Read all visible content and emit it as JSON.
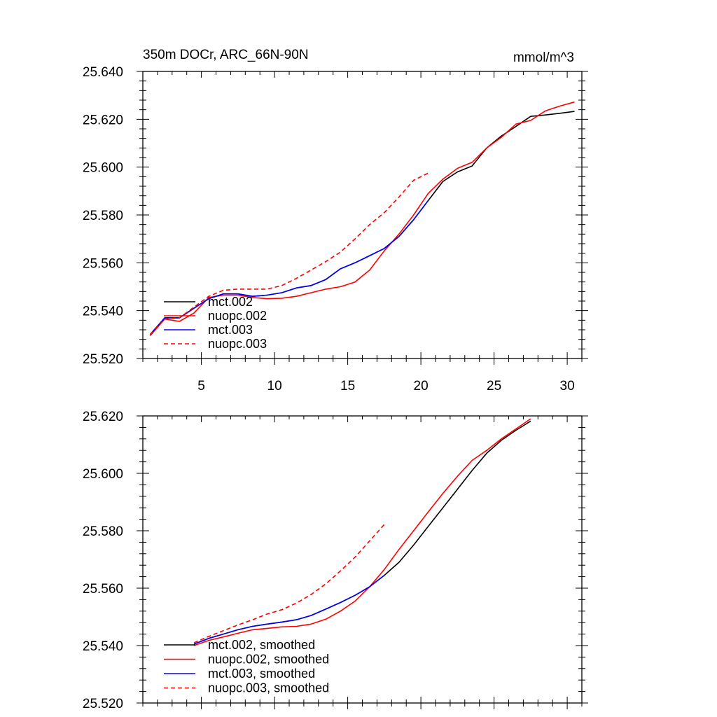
{
  "chart_data": [
    {
      "type": "line",
      "title": "350m DOCr, ARC_66N-90N",
      "units": "mmol/m^3",
      "xlim": [
        1,
        31
      ],
      "ylim": [
        25.52,
        25.64
      ],
      "xticks": [
        5,
        10,
        15,
        20,
        25,
        30
      ],
      "xtick_labels": [
        "5",
        "10",
        "15",
        "20",
        "25",
        "30"
      ],
      "yticks": [
        25.52,
        25.54,
        25.56,
        25.58,
        25.6,
        25.62,
        25.64
      ],
      "ytick_labels": [
        "25.520",
        "25.540",
        "25.560",
        "25.580",
        "25.600",
        "25.620",
        "25.640"
      ],
      "legend_position": "bottom-left",
      "series": [
        {
          "name": "mct.002",
          "color": "#000000",
          "dash": "solid",
          "x": [
            1.5,
            2.5,
            3.5,
            4.5,
            5.5,
            6.5,
            7.5,
            8.5,
            9.5,
            10.5,
            11.5,
            12.5,
            13.5,
            14.5,
            15.5,
            16.5,
            17.5,
            18.5,
            19.5,
            20.5,
            21.5,
            22.5,
            23.5,
            24.5,
            25.5,
            26.5,
            27.5,
            28.5,
            29.5,
            30.5
          ],
          "y": [
            25.53,
            25.537,
            25.537,
            25.541,
            25.545,
            25.547,
            25.547,
            25.546,
            25.5465,
            25.5475,
            25.5495,
            25.5505,
            25.553,
            25.5575,
            25.56,
            25.563,
            25.566,
            25.571,
            25.578,
            25.586,
            25.594,
            25.598,
            25.6005,
            25.608,
            25.613,
            25.617,
            25.6212,
            25.6218,
            25.6225,
            25.6233
          ]
        },
        {
          "name": "nuopc.002",
          "color": "#ff0000",
          "dash": "solid",
          "x": [
            1.5,
            2.5,
            3.5,
            4.5,
            5.5,
            6.5,
            7.5,
            8.5,
            9.5,
            10.5,
            11.5,
            12.5,
            13.5,
            14.5,
            15.5,
            16.5,
            17.5,
            18.5,
            19.5,
            20.5,
            21.5,
            22.5,
            23.5,
            24.5,
            25.5,
            26.5,
            27.5,
            28.5,
            29.5,
            30.5
          ],
          "y": [
            25.5295,
            25.5365,
            25.5355,
            25.539,
            25.5455,
            25.5465,
            25.5465,
            25.5455,
            25.545,
            25.5452,
            25.546,
            25.5475,
            25.549,
            25.55,
            25.552,
            25.557,
            25.565,
            25.572,
            25.58,
            25.589,
            25.595,
            25.5995,
            25.602,
            25.608,
            25.6125,
            25.618,
            25.6195,
            25.6235,
            25.6255,
            25.6272
          ]
        },
        {
          "name": "mct.003",
          "color": "#0000ff",
          "dash": "solid",
          "x": [
            1.5,
            2.5,
            3.5,
            4.5,
            5.5,
            6.5,
            7.5,
            8.5,
            9.5,
            10.5,
            11.5,
            12.5,
            13.5,
            14.5,
            15.5,
            16.5,
            17.5,
            18.5,
            19.5,
            20.5
          ],
          "y": [
            25.53,
            25.537,
            25.537,
            25.541,
            25.545,
            25.547,
            25.547,
            25.546,
            25.5465,
            25.5475,
            25.5495,
            25.5505,
            25.553,
            25.5575,
            25.56,
            25.563,
            25.566,
            25.571,
            25.578,
            25.586
          ]
        },
        {
          "name": "nuopc.003",
          "color": "#ff0000",
          "dash": "dashed",
          "x": [
            1.5,
            2.5,
            3.5,
            4.5,
            5.5,
            6.5,
            7.5,
            8.5,
            9.5,
            10.5,
            11.5,
            12.5,
            13.5,
            14.5,
            15.5,
            16.5,
            17.5,
            18.5,
            19.5,
            20.5
          ],
          "y": [
            25.53,
            25.5365,
            25.537,
            25.5415,
            25.546,
            25.5485,
            25.549,
            25.549,
            25.549,
            25.5505,
            25.5535,
            25.557,
            25.5605,
            25.5645,
            25.57,
            25.576,
            25.581,
            25.5875,
            25.5945,
            25.5975
          ]
        }
      ]
    },
    {
      "type": "line",
      "xlim": [
        1,
        31
      ],
      "ylim": [
        25.52,
        25.62
      ],
      "xticks": [
        5,
        10,
        15,
        20,
        25,
        30
      ],
      "yticks": [
        25.52,
        25.54,
        25.56,
        25.58,
        25.6,
        25.62
      ],
      "ytick_labels": [
        "25.520",
        "25.540",
        "25.560",
        "25.580",
        "25.600",
        "25.620"
      ],
      "legend_position": "bottom-left",
      "series": [
        {
          "name": "mct.002, smoothed",
          "color": "#000000",
          "dash": "solid",
          "x": [
            4.5,
            5.5,
            6.5,
            7.5,
            8.5,
            9.5,
            10.5,
            11.5,
            12.5,
            13.5,
            14.5,
            15.5,
            16.5,
            17.5,
            18.5,
            19.5,
            20.5,
            21.5,
            22.5,
            23.5,
            24.5,
            25.5,
            26.5,
            27.5
          ],
          "y": [
            25.5405,
            25.5425,
            25.544,
            25.5455,
            25.5467,
            25.5475,
            25.5482,
            25.549,
            25.5505,
            25.5527,
            25.555,
            25.5575,
            25.5605,
            25.5645,
            25.569,
            25.575,
            25.5815,
            25.588,
            25.5945,
            25.601,
            25.607,
            25.6115,
            25.615,
            25.6182
          ]
        },
        {
          "name": "nuopc.002, smoothed",
          "color": "#ff0000",
          "dash": "solid",
          "x": [
            4.5,
            5.5,
            6.5,
            7.5,
            8.5,
            9.5,
            10.5,
            11.5,
            12.5,
            13.5,
            14.5,
            15.5,
            16.5,
            17.5,
            18.5,
            19.5,
            20.5,
            21.5,
            22.5,
            23.5,
            24.5,
            25.5,
            26.5,
            27.5
          ],
          "y": [
            25.54,
            25.5418,
            25.543,
            25.5443,
            25.5455,
            25.546,
            25.5465,
            25.5467,
            25.5475,
            25.5492,
            25.552,
            25.5555,
            25.5605,
            25.5665,
            25.5735,
            25.58,
            25.5865,
            25.593,
            25.599,
            25.6045,
            25.608,
            25.612,
            25.6155,
            25.619
          ]
        },
        {
          "name": "mct.003, smoothed",
          "color": "#0000ff",
          "dash": "solid",
          "x": [
            4.5,
            5.5,
            6.5,
            7.5,
            8.5,
            9.5,
            10.5,
            11.5,
            12.5,
            13.5,
            14.5,
            15.5,
            16.5,
            17.5
          ],
          "y": [
            25.5405,
            25.5425,
            25.544,
            25.5455,
            25.5467,
            25.5475,
            25.5482,
            25.549,
            25.5505,
            25.5527,
            25.555,
            25.5575,
            25.5605,
            25.5645
          ]
        },
        {
          "name": "nuopc.003, smoothed",
          "color": "#ff0000",
          "dash": "dashed",
          "x": [
            4.5,
            5.5,
            6.5,
            7.5,
            8.5,
            9.5,
            10.5,
            11.5,
            12.5,
            13.5,
            14.5,
            15.5,
            16.5,
            17.5
          ],
          "y": [
            25.541,
            25.5432,
            25.5452,
            25.5472,
            25.549,
            25.551,
            25.5525,
            25.5548,
            25.5578,
            25.5615,
            25.566,
            25.5708,
            25.5765,
            25.5822
          ]
        }
      ]
    }
  ]
}
